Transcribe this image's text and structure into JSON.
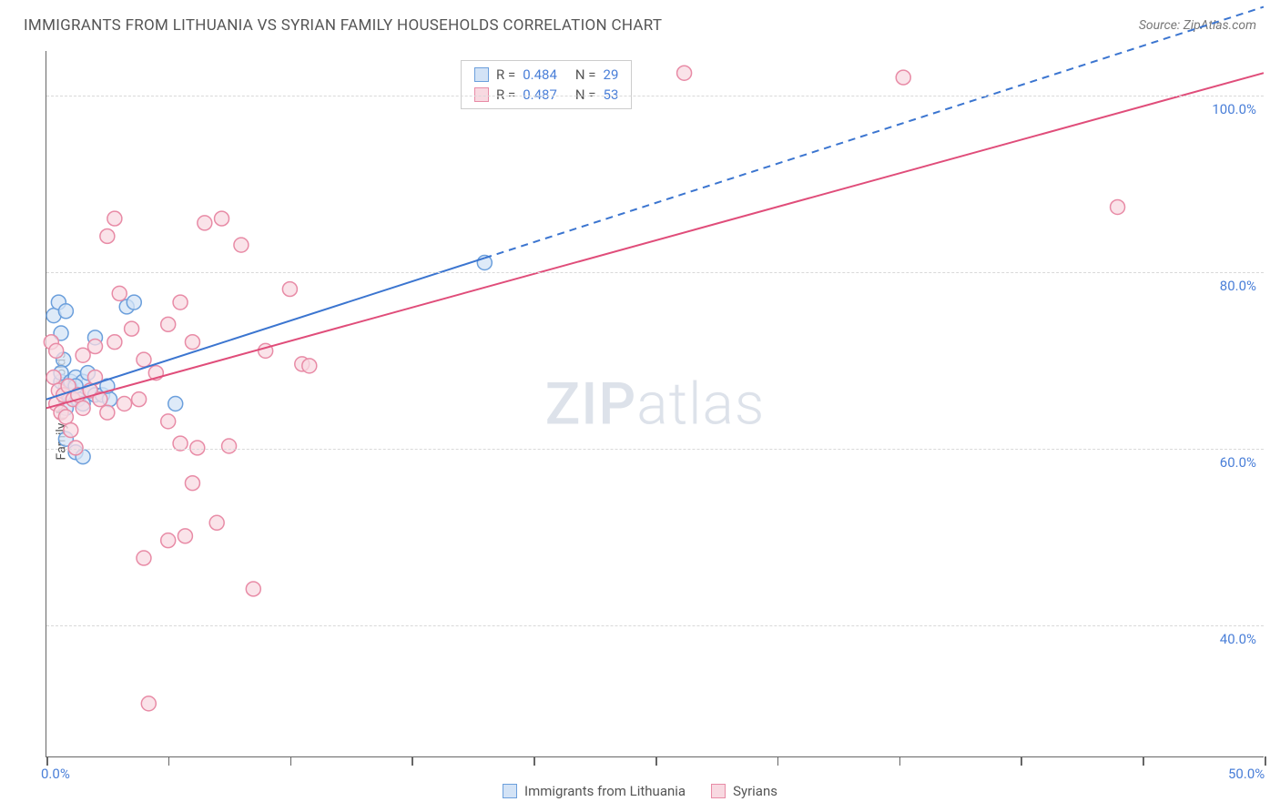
{
  "title": "IMMIGRANTS FROM LITHUANIA VS SYRIAN FAMILY HOUSEHOLDS CORRELATION CHART",
  "source": "Source: ZipAtlas.com",
  "watermark_a": "ZIP",
  "watermark_b": "atlas",
  "chart": {
    "type": "scatter",
    "ylabel": "Family Households",
    "xlim": [
      0,
      50
    ],
    "ylim": [
      25,
      105
    ],
    "y_ticks": [
      40,
      60,
      80,
      100
    ],
    "y_tick_labels": [
      "40.0%",
      "60.0%",
      "80.0%",
      "100.0%"
    ],
    "x_ticks": [
      0,
      5,
      10,
      15,
      20,
      25,
      30,
      35,
      40,
      45,
      50
    ],
    "x_tick_labels_shown": {
      "0": "0.0%",
      "50": "50.0%"
    },
    "grid_color": "#d9d9d9",
    "axis_color": "#666666",
    "background_color": "#ffffff",
    "marker_radius": 8,
    "marker_stroke_width": 1.5,
    "line_width": 2,
    "series": [
      {
        "name": "Immigrants from Lithuania",
        "color_fill": "#d3e3f6",
        "color_stroke": "#6b9fdc",
        "line_color": "#3b75d0",
        "R": "0.484",
        "N": "29",
        "points": [
          [
            0.3,
            75
          ],
          [
            0.5,
            76.5
          ],
          [
            0.8,
            75.5
          ],
          [
            0.6,
            73
          ],
          [
            0.7,
            70
          ],
          [
            0.6,
            67.5
          ],
          [
            0.6,
            68.5
          ],
          [
            1.0,
            67.5
          ],
          [
            1.2,
            68
          ],
          [
            1.5,
            67.5
          ],
          [
            0.9,
            66
          ],
          [
            0.8,
            64.5
          ],
          [
            1.3,
            65.5
          ],
          [
            1.5,
            65
          ],
          [
            1.2,
            67
          ],
          [
            1.8,
            66.5
          ],
          [
            2.0,
            66
          ],
          [
            2.3,
            66
          ],
          [
            2.6,
            65.5
          ],
          [
            2.5,
            67
          ],
          [
            1.7,
            68.5
          ],
          [
            0.8,
            61
          ],
          [
            1.2,
            59.5
          ],
          [
            1.5,
            59
          ],
          [
            5.3,
            65
          ],
          [
            3.3,
            76
          ],
          [
            3.6,
            76.5
          ],
          [
            18.0,
            81
          ],
          [
            2.0,
            72.5
          ]
        ],
        "trend": {
          "x1": 0,
          "y1": 65.5,
          "x2": 18,
          "y2": 81.5,
          "ext_x": 50,
          "ext_y": 110,
          "dashed_from": 18
        }
      },
      {
        "name": "Syrians",
        "color_fill": "#f8d9e1",
        "color_stroke": "#e88ba6",
        "line_color": "#e04d7a",
        "R": "0.487",
        "N": "53",
        "points": [
          [
            0.2,
            72
          ],
          [
            0.4,
            71
          ],
          [
            0.3,
            68
          ],
          [
            0.5,
            66.5
          ],
          [
            0.4,
            65
          ],
          [
            0.6,
            64
          ],
          [
            0.8,
            63.5
          ],
          [
            0.7,
            66
          ],
          [
            0.9,
            67
          ],
          [
            1.1,
            65.5
          ],
          [
            1.3,
            66
          ],
          [
            1.5,
            64.5
          ],
          [
            1.8,
            66.5
          ],
          [
            2.0,
            68
          ],
          [
            2.2,
            65.5
          ],
          [
            2.5,
            64
          ],
          [
            2.0,
            71.5
          ],
          [
            2.8,
            72
          ],
          [
            3.0,
            77.5
          ],
          [
            3.5,
            73.5
          ],
          [
            4.0,
            70
          ],
          [
            4.5,
            68.5
          ],
          [
            5.0,
            74
          ],
          [
            5.5,
            76.5
          ],
          [
            6.0,
            72
          ],
          [
            6.5,
            85.5
          ],
          [
            7.2,
            86
          ],
          [
            5.0,
            63
          ],
          [
            5.5,
            60.5
          ],
          [
            6.2,
            60
          ],
          [
            7.5,
            60.2
          ],
          [
            6.0,
            56
          ],
          [
            5.0,
            49.5
          ],
          [
            5.7,
            50
          ],
          [
            4.0,
            47.5
          ],
          [
            7.0,
            51.5
          ],
          [
            8.5,
            44
          ],
          [
            10.0,
            78
          ],
          [
            10.5,
            69.5
          ],
          [
            10.8,
            69.3
          ],
          [
            8.0,
            83
          ],
          [
            1.2,
            60
          ],
          [
            1.0,
            62
          ],
          [
            2.5,
            84
          ],
          [
            2.8,
            86
          ],
          [
            4.2,
            31
          ],
          [
            3.2,
            65
          ],
          [
            3.8,
            65.5
          ],
          [
            26.2,
            102.5
          ],
          [
            35.2,
            102
          ],
          [
            44.0,
            87.3
          ],
          [
            9.0,
            71
          ],
          [
            1.5,
            70.5
          ]
        ],
        "trend": {
          "x1": 0,
          "y1": 64.5,
          "x2": 50,
          "y2": 102.5,
          "ext_x": 50,
          "ext_y": 102.5,
          "dashed_from": 50
        }
      }
    ],
    "legend_top": [
      {
        "swatch_fill": "#d3e3f6",
        "swatch_stroke": "#6b9fdc",
        "r_label": "R =",
        "r_val": "0.484",
        "n_label": "N =",
        "n_val": "29"
      },
      {
        "swatch_fill": "#f8d9e1",
        "swatch_stroke": "#e88ba6",
        "r_label": "R =",
        "r_val": "0.487",
        "n_label": "N =",
        "n_val": "53"
      }
    ],
    "legend_bottom": [
      {
        "swatch_fill": "#d3e3f6",
        "swatch_stroke": "#6b9fdc",
        "label": "Immigrants from Lithuania"
      },
      {
        "swatch_fill": "#f8d9e1",
        "swatch_stroke": "#e88ba6",
        "label": "Syrians"
      }
    ]
  }
}
